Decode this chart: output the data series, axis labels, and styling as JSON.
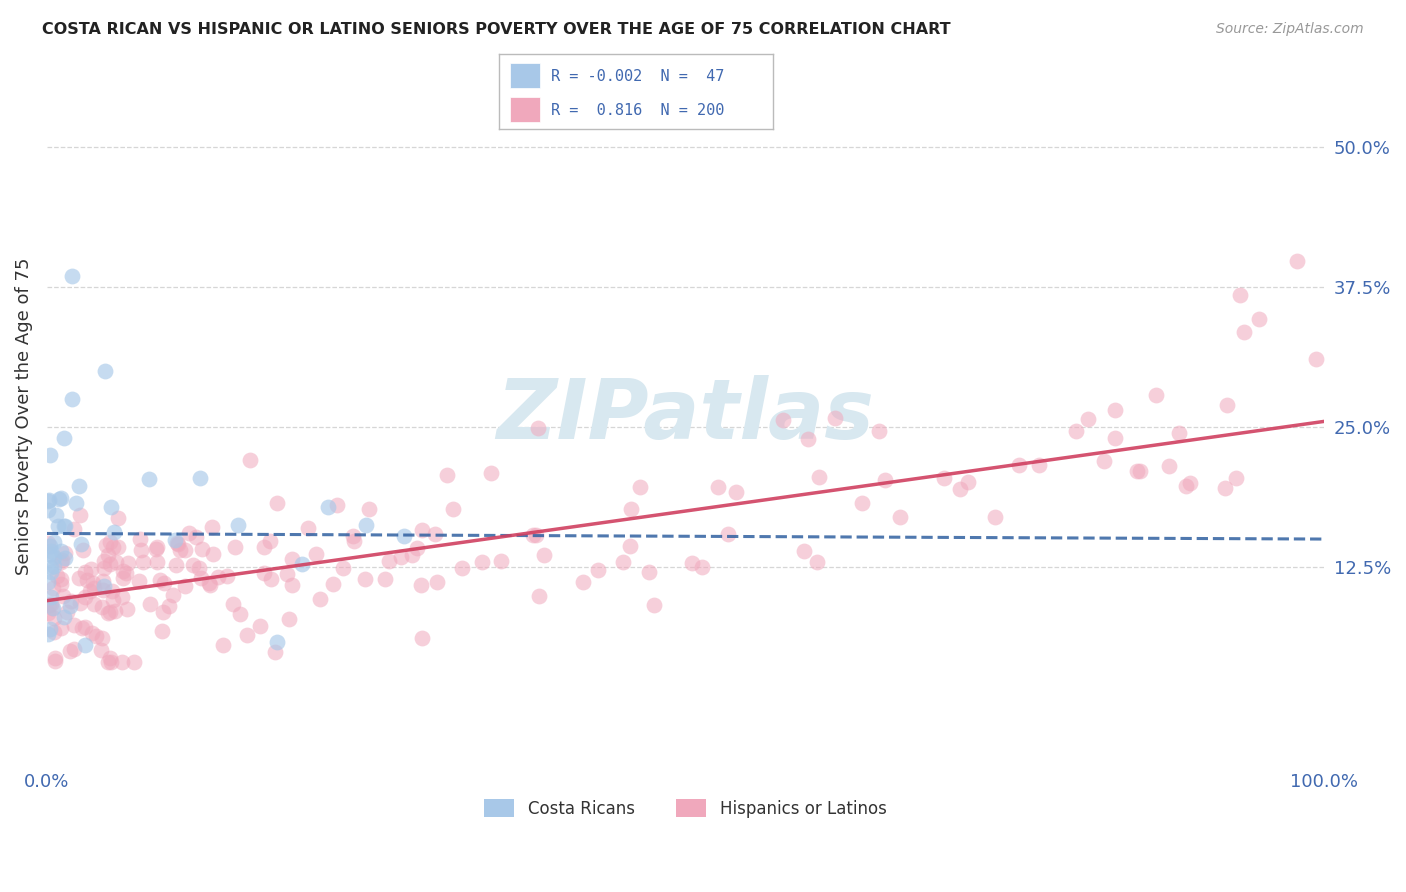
{
  "title": "COSTA RICAN VS HISPANIC OR LATINO SENIORS POVERTY OVER THE AGE OF 75 CORRELATION CHART",
  "source": "Source: ZipAtlas.com",
  "ylabel": "Seniors Poverty Over the Age of 75",
  "xlim": [
    0,
    100
  ],
  "ylim": [
    -5,
    57
  ],
  "yticks": [
    12.5,
    25.0,
    37.5,
    50.0
  ],
  "ytick_labels": [
    "12.5%",
    "25.0%",
    "37.5%",
    "50.0%"
  ],
  "xtick_labels": [
    "0.0%",
    "100.0%"
  ],
  "blue_scatter_color": "#A8C8E8",
  "pink_scatter_color": "#F0A8BC",
  "blue_line_color": "#3060A0",
  "pink_line_color": "#D04060",
  "text_color": "#4169B0",
  "grid_color": "#CCCCCC",
  "background_color": "#FFFFFF",
  "blue_N": 47,
  "pink_N": 200,
  "blue_line_y0": 15.5,
  "blue_line_y1": 15.0,
  "pink_line_y0": 9.5,
  "pink_line_y1": 25.5,
  "watermark_color": "#D8E8F0",
  "scatter_size": 130,
  "scatter_alpha_blue": 0.65,
  "scatter_alpha_pink": 0.55
}
